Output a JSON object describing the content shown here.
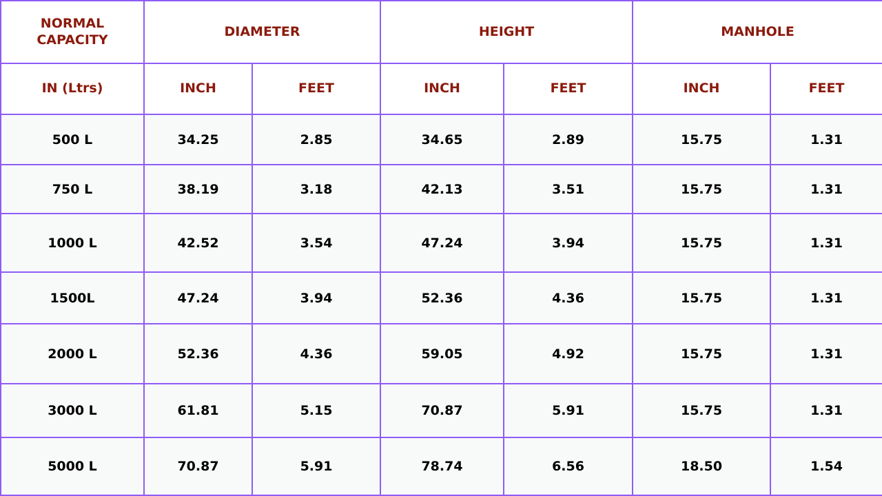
{
  "colors": {
    "border": "#8f5cf7",
    "header_text": "#8b1a0c",
    "cell_bg": "#f8f9f9"
  },
  "header": {
    "group": [
      "NORMAL CAPACITY",
      "DIAMETER",
      "HEIGHT",
      "MANHOLE"
    ],
    "sub": [
      "IN (Ltrs)",
      "INCH",
      "FEET",
      "INCH",
      "FEET",
      "INCH",
      "FEET"
    ]
  },
  "rows": [
    [
      "500 L",
      "34.25",
      "2.85",
      "34.65",
      "2.89",
      "15.75",
      "1.31"
    ],
    [
      "750 L",
      "38.19",
      "3.18",
      "42.13",
      "3.51",
      "15.75",
      "1.31"
    ],
    [
      "1000 L",
      "42.52",
      "3.54",
      "47.24",
      "3.94",
      "15.75",
      "1.31"
    ],
    [
      "1500L",
      "47.24",
      "3.94",
      "52.36",
      "4.36",
      "15.75",
      "1.31"
    ],
    [
      "2000 L",
      "52.36",
      "4.36",
      "59.05",
      "4.92",
      "15.75",
      "1.31"
    ],
    [
      "3000 L",
      "61.81",
      "5.15",
      "70.87",
      "5.91",
      "15.75",
      "1.31"
    ],
    [
      "5000 L",
      "70.87",
      "5.91",
      "78.74",
      "6.56",
      "18.50",
      "1.54"
    ]
  ]
}
